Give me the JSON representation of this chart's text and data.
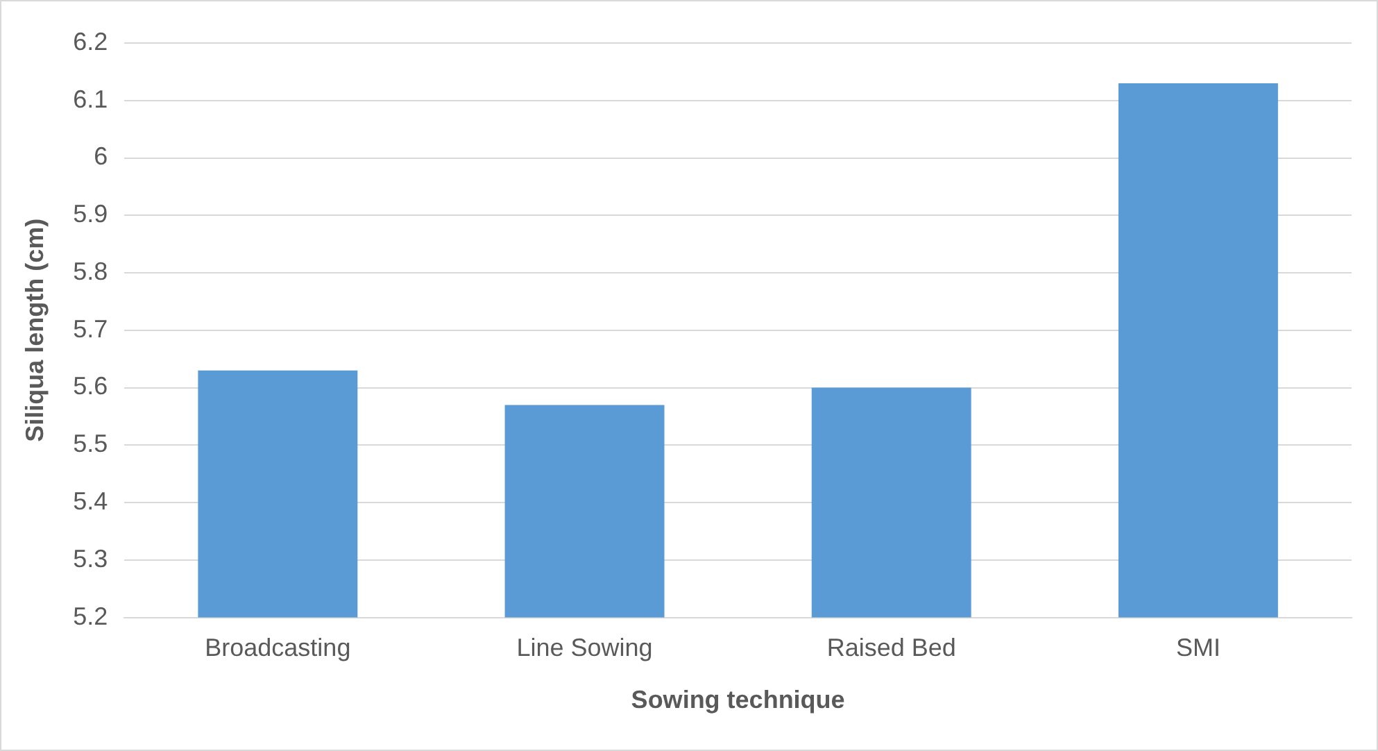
{
  "chart_data": {
    "type": "bar",
    "xlabel": "Sowing technique",
    "ylabel": "Siliqua length (cm)",
    "categories": [
      "Broadcasting",
      "Line Sowing",
      "Raised Bed",
      "SMI"
    ],
    "values": [
      5.63,
      5.57,
      5.6,
      6.13
    ],
    "color": "#5b9bd5",
    "ylim": [
      5.2,
      6.2
    ],
    "yticks": [
      5.2,
      5.3,
      5.4,
      5.5,
      5.6,
      5.7,
      5.8,
      5.9,
      6,
      6.1,
      6.2
    ],
    "grid": "y",
    "legend": false
  }
}
